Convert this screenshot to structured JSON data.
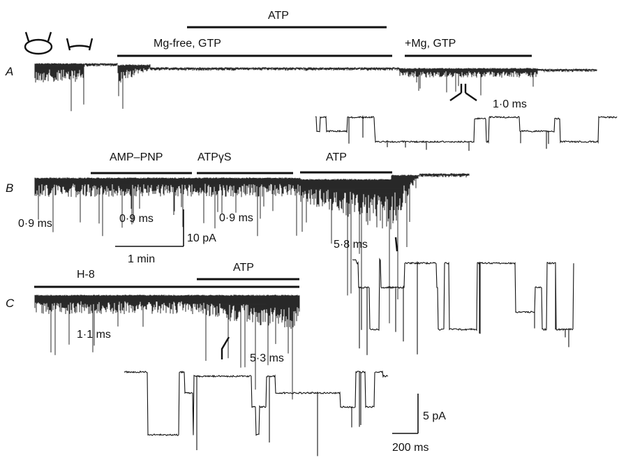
{
  "panels": {
    "A": {
      "letter": "A",
      "bars": {
        "atp": "ATP",
        "mg_free_gtp": "Mg-free, GTP",
        "mg_gtp": "+Mg, GTP"
      },
      "open_time": "1·0 ms"
    },
    "B": {
      "letter": "B",
      "bars": {
        "amp_pnp": "AMP–PNP",
        "atp_gamma_s": "ATPγS",
        "atp": "ATP"
      },
      "open_times": {
        "control": "0·9 ms",
        "amp_pnp": "0·9 ms",
        "atp_gamma_s": "0·9 ms",
        "atp": "5·8 ms"
      }
    },
    "C": {
      "letter": "C",
      "bars": {
        "h8": "H-8",
        "atp": "ATP"
      },
      "open_times": {
        "h8": "1·1 ms",
        "atp": "5·3 ms"
      }
    }
  },
  "scale_bars": {
    "slow": {
      "current": "10 pA",
      "time": "1 min"
    },
    "fast": {
      "current": "5 pA",
      "time": "200 ms"
    }
  },
  "colors": {
    "ink": "#111111",
    "background": "#ffffff"
  }
}
